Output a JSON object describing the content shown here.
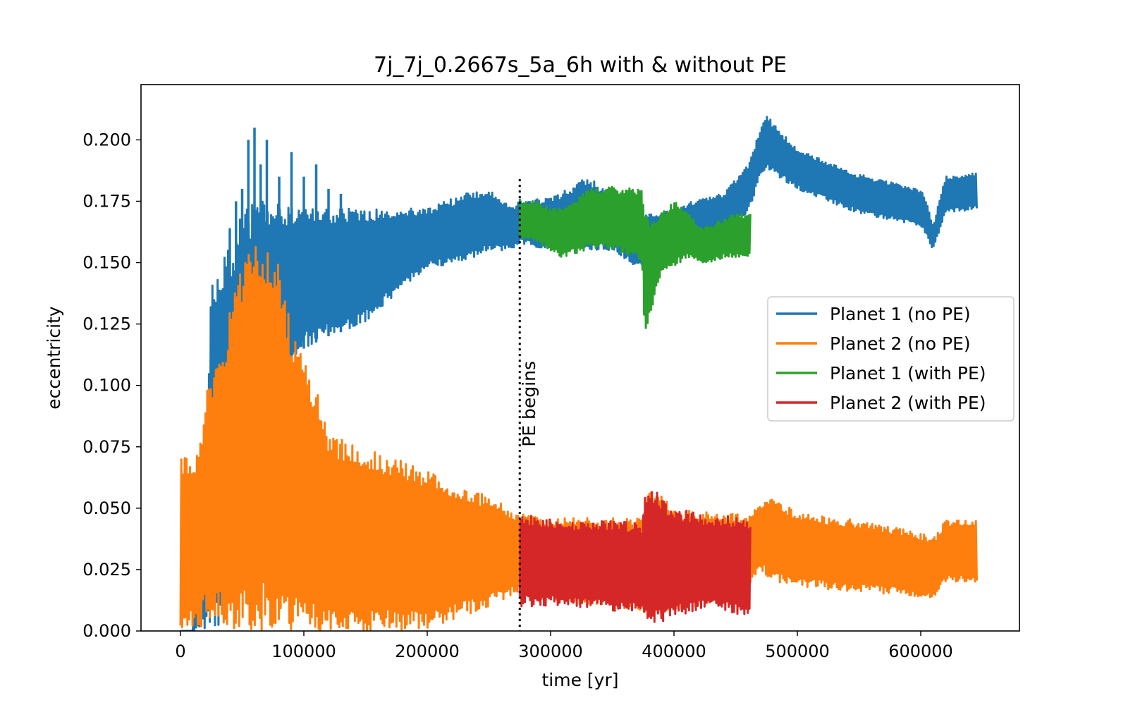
{
  "chart_data": {
    "type": "line",
    "title": "7j_7j_0.2667s_5a_6h with & without PE",
    "xlabel": "time [yr]",
    "ylabel": "eccentricity",
    "xlim": [
      -32000,
      680000
    ],
    "ylim": [
      0,
      0.2225
    ],
    "xticks": [
      0,
      100000,
      200000,
      300000,
      400000,
      500000,
      600000
    ],
    "xtick_labels": [
      "0",
      "100000",
      "200000",
      "300000",
      "400000",
      "500000",
      "600000"
    ],
    "yticks": [
      0.0,
      0.025,
      0.05,
      0.075,
      0.1,
      0.125,
      0.15,
      0.175,
      0.2
    ],
    "ytick_labels": [
      "0.000",
      "0.025",
      "0.050",
      "0.075",
      "0.100",
      "0.125",
      "0.150",
      "0.175",
      "0.200"
    ],
    "grid": false,
    "legend_position": "center-right",
    "series": [
      {
        "name": "Planet 1 (no PE)",
        "color": "#1f77b4",
        "x_range": [
          0,
          646000
        ],
        "envelope": {
          "x": [
            0,
            10000,
            20000,
            25000,
            30000,
            40000,
            50000,
            60000,
            70000,
            80000,
            90000,
            100000,
            120000,
            150000,
            180000,
            200000,
            230000,
            250000,
            270000,
            275000,
            300000,
            330000,
            350000,
            370000,
            380000,
            400000,
            420000,
            440000,
            460000,
            470000,
            475000,
            500000,
            550000,
            600000,
            605000,
            610000,
            620000,
            646000
          ],
          "upper": [
            0.0,
            0.0,
            0.06,
            0.14,
            0.15,
            0.16,
            0.17,
            0.175,
            0.175,
            0.175,
            0.172,
            0.172,
            0.172,
            0.172,
            0.172,
            0.172,
            0.178,
            0.18,
            0.172,
            0.176,
            0.176,
            0.185,
            0.178,
            0.17,
            0.17,
            0.172,
            0.176,
            0.178,
            0.19,
            0.205,
            0.21,
            0.196,
            0.186,
            0.18,
            0.175,
            0.165,
            0.185,
            0.187
          ],
          "lower": [
            0.0,
            0.0,
            0.0,
            0.0,
            0.0,
            0.015,
            0.03,
            0.06,
            0.08,
            0.1,
            0.11,
            0.115,
            0.12,
            0.125,
            0.14,
            0.148,
            0.15,
            0.155,
            0.155,
            0.158,
            0.155,
            0.155,
            0.155,
            0.148,
            0.15,
            0.155,
            0.16,
            0.162,
            0.17,
            0.185,
            0.188,
            0.18,
            0.17,
            0.165,
            0.16,
            0.155,
            0.17,
            0.172
          ]
        },
        "spikes": [
          [
            40000,
            0.164
          ],
          [
            45000,
            0.175
          ],
          [
            50000,
            0.18
          ],
          [
            55000,
            0.2
          ],
          [
            60000,
            0.205
          ],
          [
            65000,
            0.19
          ],
          [
            70000,
            0.2
          ],
          [
            80000,
            0.185
          ],
          [
            90000,
            0.195
          ],
          [
            100000,
            0.185
          ],
          [
            110000,
            0.19
          ],
          [
            120000,
            0.18
          ],
          [
            130000,
            0.178
          ]
        ]
      },
      {
        "name": "Planet 2 (no PE)",
        "color": "#ff7f0e",
        "x_range": [
          0,
          646000
        ],
        "envelope": {
          "x": [
            0,
            15000,
            20000,
            25000,
            30000,
            40000,
            50000,
            60000,
            70000,
            80000,
            90000,
            100000,
            110000,
            120000,
            150000,
            200000,
            250000,
            275000,
            300000,
            350000,
            375000,
            380000,
            400000,
            450000,
            460000,
            470000,
            480000,
            500000,
            550000,
            600000,
            610000,
            620000,
            646000
          ],
          "upper": [
            0.072,
            0.072,
            0.095,
            0.105,
            0.11,
            0.13,
            0.15,
            0.16,
            0.16,
            0.15,
            0.125,
            0.11,
            0.1,
            0.08,
            0.075,
            0.065,
            0.055,
            0.048,
            0.046,
            0.046,
            0.046,
            0.06,
            0.05,
            0.048,
            0.047,
            0.052,
            0.055,
            0.048,
            0.045,
            0.04,
            0.038,
            0.045,
            0.045
          ],
          "lower": [
            0.0,
            0.0,
            0.005,
            0.005,
            0.005,
            0.0,
            0.0,
            0.0,
            0.0,
            0.0,
            0.0,
            0.0,
            0.0,
            0.0,
            0.0,
            0.0,
            0.01,
            0.015,
            0.012,
            0.01,
            0.008,
            0.005,
            0.008,
            0.012,
            0.015,
            0.025,
            0.02,
            0.018,
            0.016,
            0.014,
            0.012,
            0.02,
            0.02
          ]
        }
      },
      {
        "name": "Planet 1 (with PE)",
        "color": "#2ca02c",
        "x_range": [
          275000,
          462000
        ],
        "envelope": {
          "x": [
            275000,
            290000,
            300000,
            310000,
            330000,
            350000,
            370000,
            374000,
            376000,
            378000,
            380000,
            390000,
            400000,
            410000,
            420000,
            430000,
            440000,
            450000,
            462000
          ],
          "upper": [
            0.175,
            0.175,
            0.172,
            0.172,
            0.18,
            0.181,
            0.18,
            0.18,
            0.17,
            0.17,
            0.168,
            0.17,
            0.175,
            0.172,
            0.165,
            0.165,
            0.168,
            0.17,
            0.17
          ],
          "lower": [
            0.16,
            0.158,
            0.155,
            0.152,
            0.155,
            0.155,
            0.152,
            0.15,
            0.12,
            0.12,
            0.128,
            0.145,
            0.148,
            0.152,
            0.15,
            0.15,
            0.152,
            0.152,
            0.152
          ]
        }
      },
      {
        "name": "Planet 2 (with PE)",
        "color": "#d62728",
        "x_range": [
          275000,
          462000
        ],
        "envelope": {
          "x": [
            275000,
            300000,
            320000,
            350000,
            370000,
            374000,
            376000,
            380000,
            390000,
            400000,
            420000,
            440000,
            462000
          ],
          "upper": [
            0.048,
            0.046,
            0.045,
            0.045,
            0.044,
            0.044,
            0.058,
            0.06,
            0.055,
            0.05,
            0.048,
            0.047,
            0.046
          ],
          "lower": [
            0.01,
            0.01,
            0.01,
            0.008,
            0.008,
            0.006,
            0.003,
            0.002,
            0.003,
            0.006,
            0.008,
            0.008,
            0.006
          ]
        }
      }
    ],
    "annotations": [
      {
        "type": "vline",
        "x": 275000,
        "style": "dotted",
        "color": "#000000"
      },
      {
        "type": "text",
        "text": "PE begins",
        "x": 285000,
        "y": 0.075,
        "rotation": 90
      }
    ]
  }
}
